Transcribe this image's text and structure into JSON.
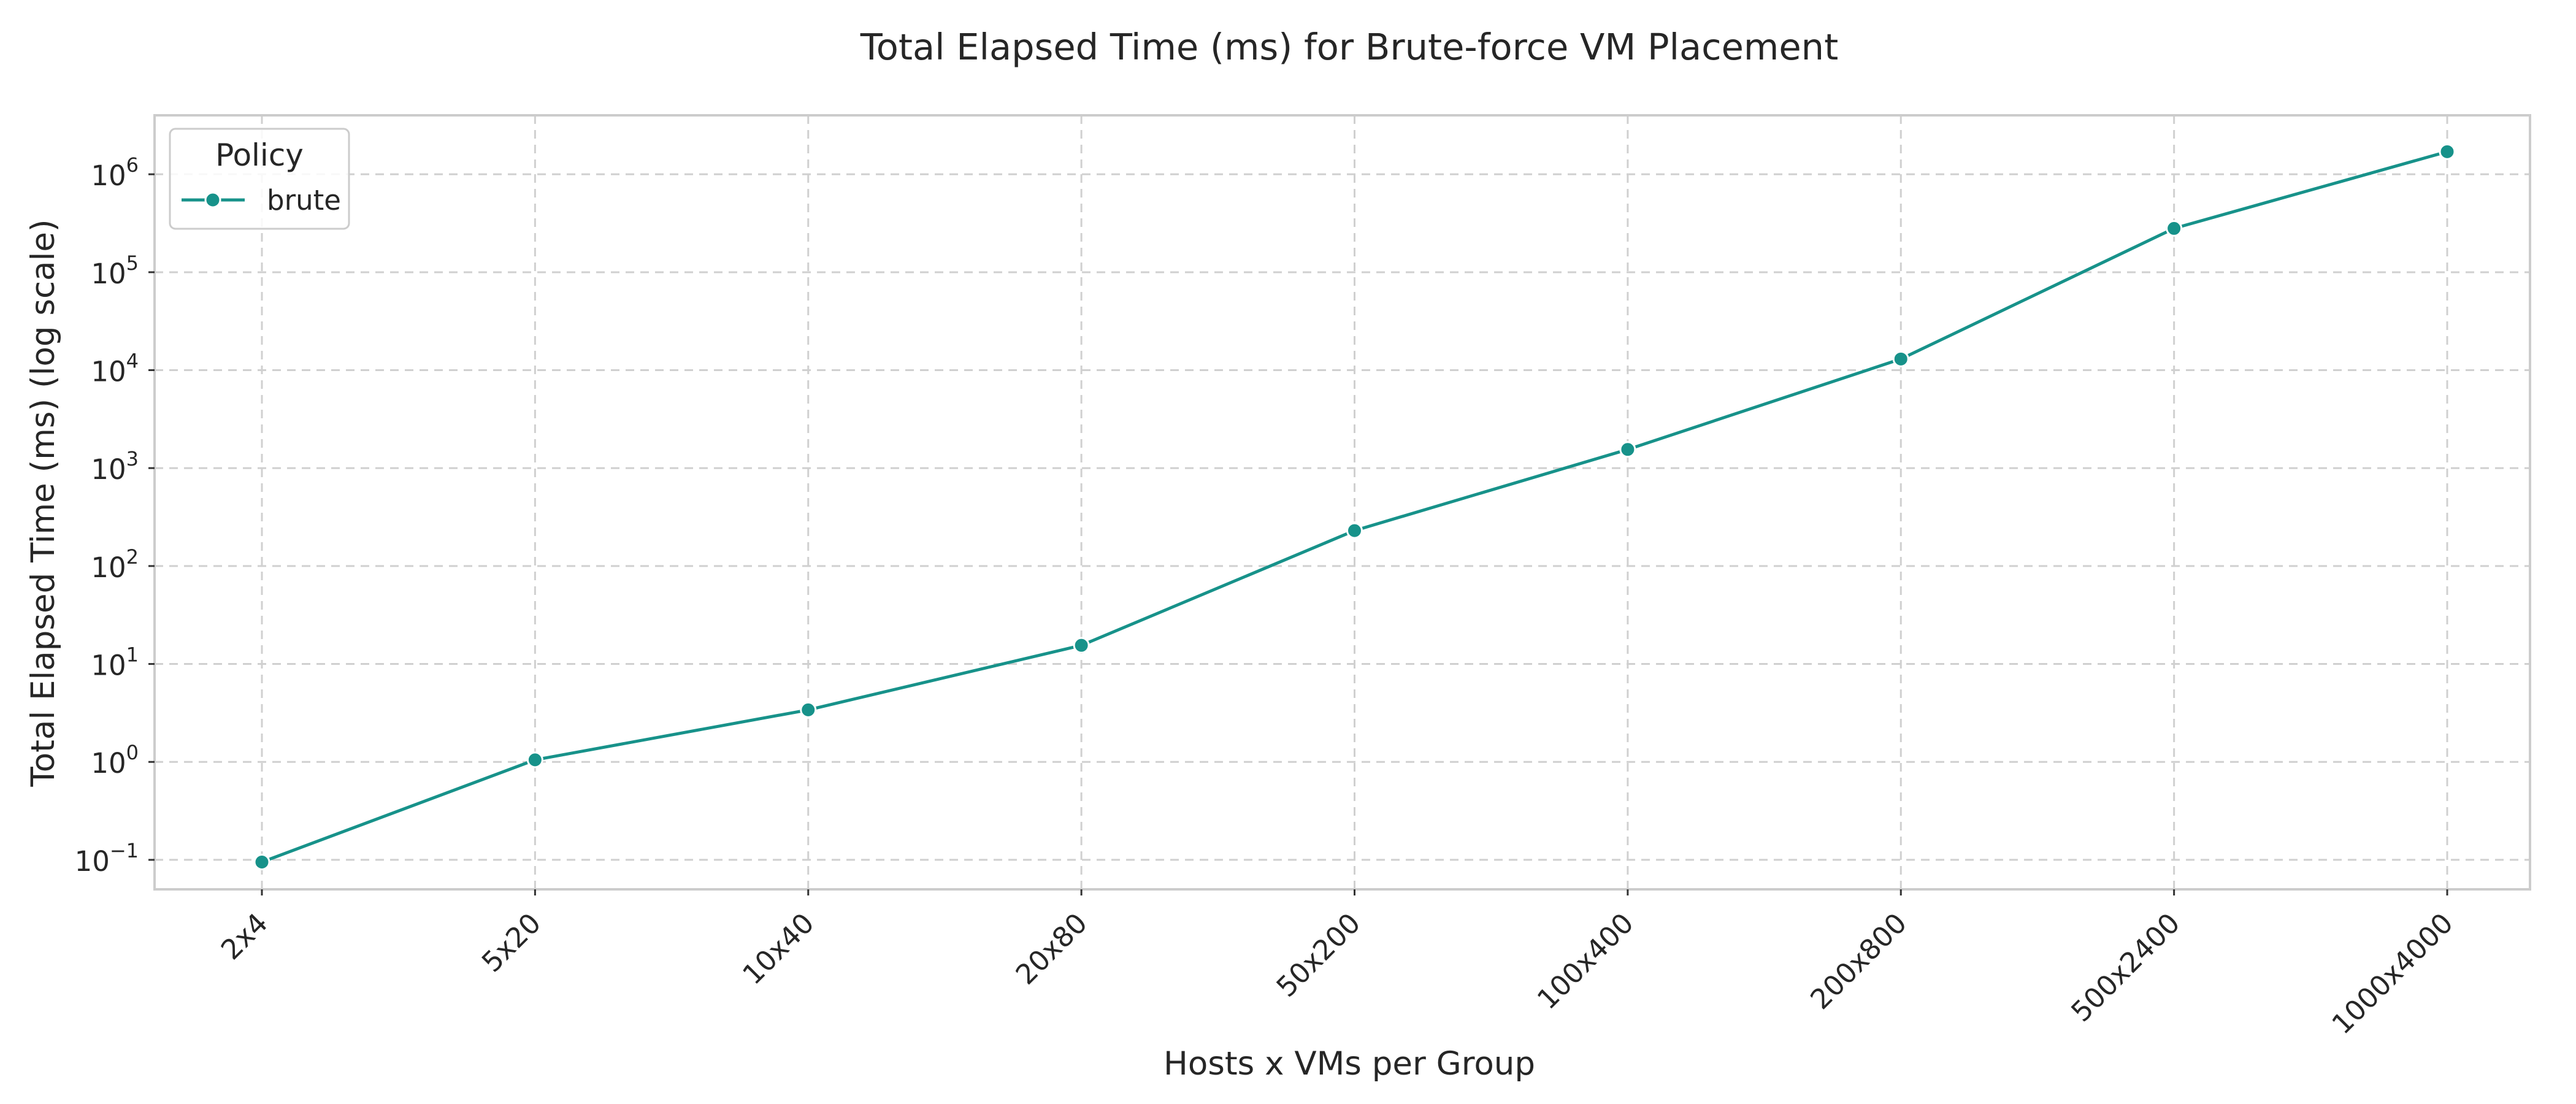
{
  "chart_data": {
    "type": "line",
    "title": "Total Elapsed Time (ms) for Brute-force VM Placement",
    "xlabel": "Hosts x VMs per Group",
    "ylabel": "Total Elapsed Time (ms) (log scale)",
    "yscale": "log",
    "ylim": [
      0.05,
      4000000
    ],
    "yticks": [
      {
        "base": "10",
        "exp": "−1"
      },
      {
        "base": "10",
        "exp": "0"
      },
      {
        "base": "10",
        "exp": "1"
      },
      {
        "base": "10",
        "exp": "2"
      },
      {
        "base": "10",
        "exp": "3"
      },
      {
        "base": "10",
        "exp": "4"
      },
      {
        "base": "10",
        "exp": "5"
      },
      {
        "base": "10",
        "exp": "6"
      }
    ],
    "categories": [
      "2x4",
      "5x20",
      "10x40",
      "20x80",
      "50x200",
      "100x400",
      "200x800",
      "500x2400",
      "1000x4000"
    ],
    "series": [
      {
        "name": "brute",
        "color": "#17928a",
        "marker": "circle",
        "values": [
          0.095,
          1.05,
          3.4,
          15.5,
          230,
          1550,
          13000,
          280000,
          1700000
        ]
      }
    ],
    "legend": {
      "title": "Policy",
      "position": "top-left"
    },
    "grid": true
  }
}
